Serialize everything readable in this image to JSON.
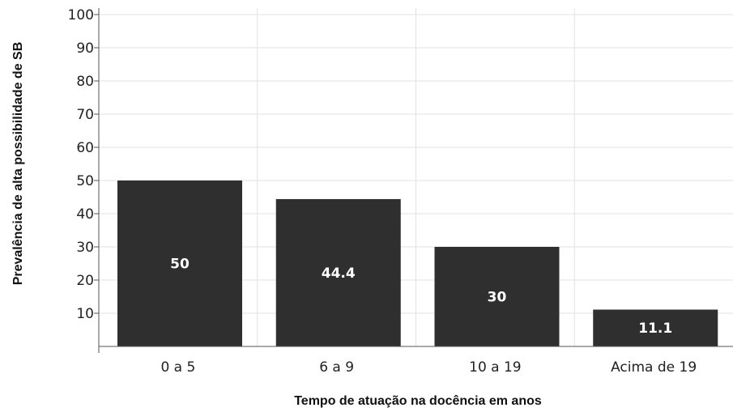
{
  "chart_data": {
    "type": "bar",
    "categories": [
      "0 a 5",
      "6 a 9",
      "10 a 19",
      "Acima de 19"
    ],
    "values": [
      50,
      44.4,
      30,
      11.1
    ],
    "value_labels": [
      "50",
      "44.4",
      "30",
      "11.1"
    ],
    "title": "",
    "xlabel": "Tempo de atuação na docência em anos",
    "ylabel": "Prevalência de alta possibilidade de SB",
    "ylim": [
      0,
      100
    ],
    "yticks": [
      10,
      20,
      30,
      40,
      50,
      60,
      70,
      80,
      90,
      100
    ],
    "grid": true,
    "bar_color": "#2f2f2f",
    "grid_color": "#e2e2e2"
  }
}
